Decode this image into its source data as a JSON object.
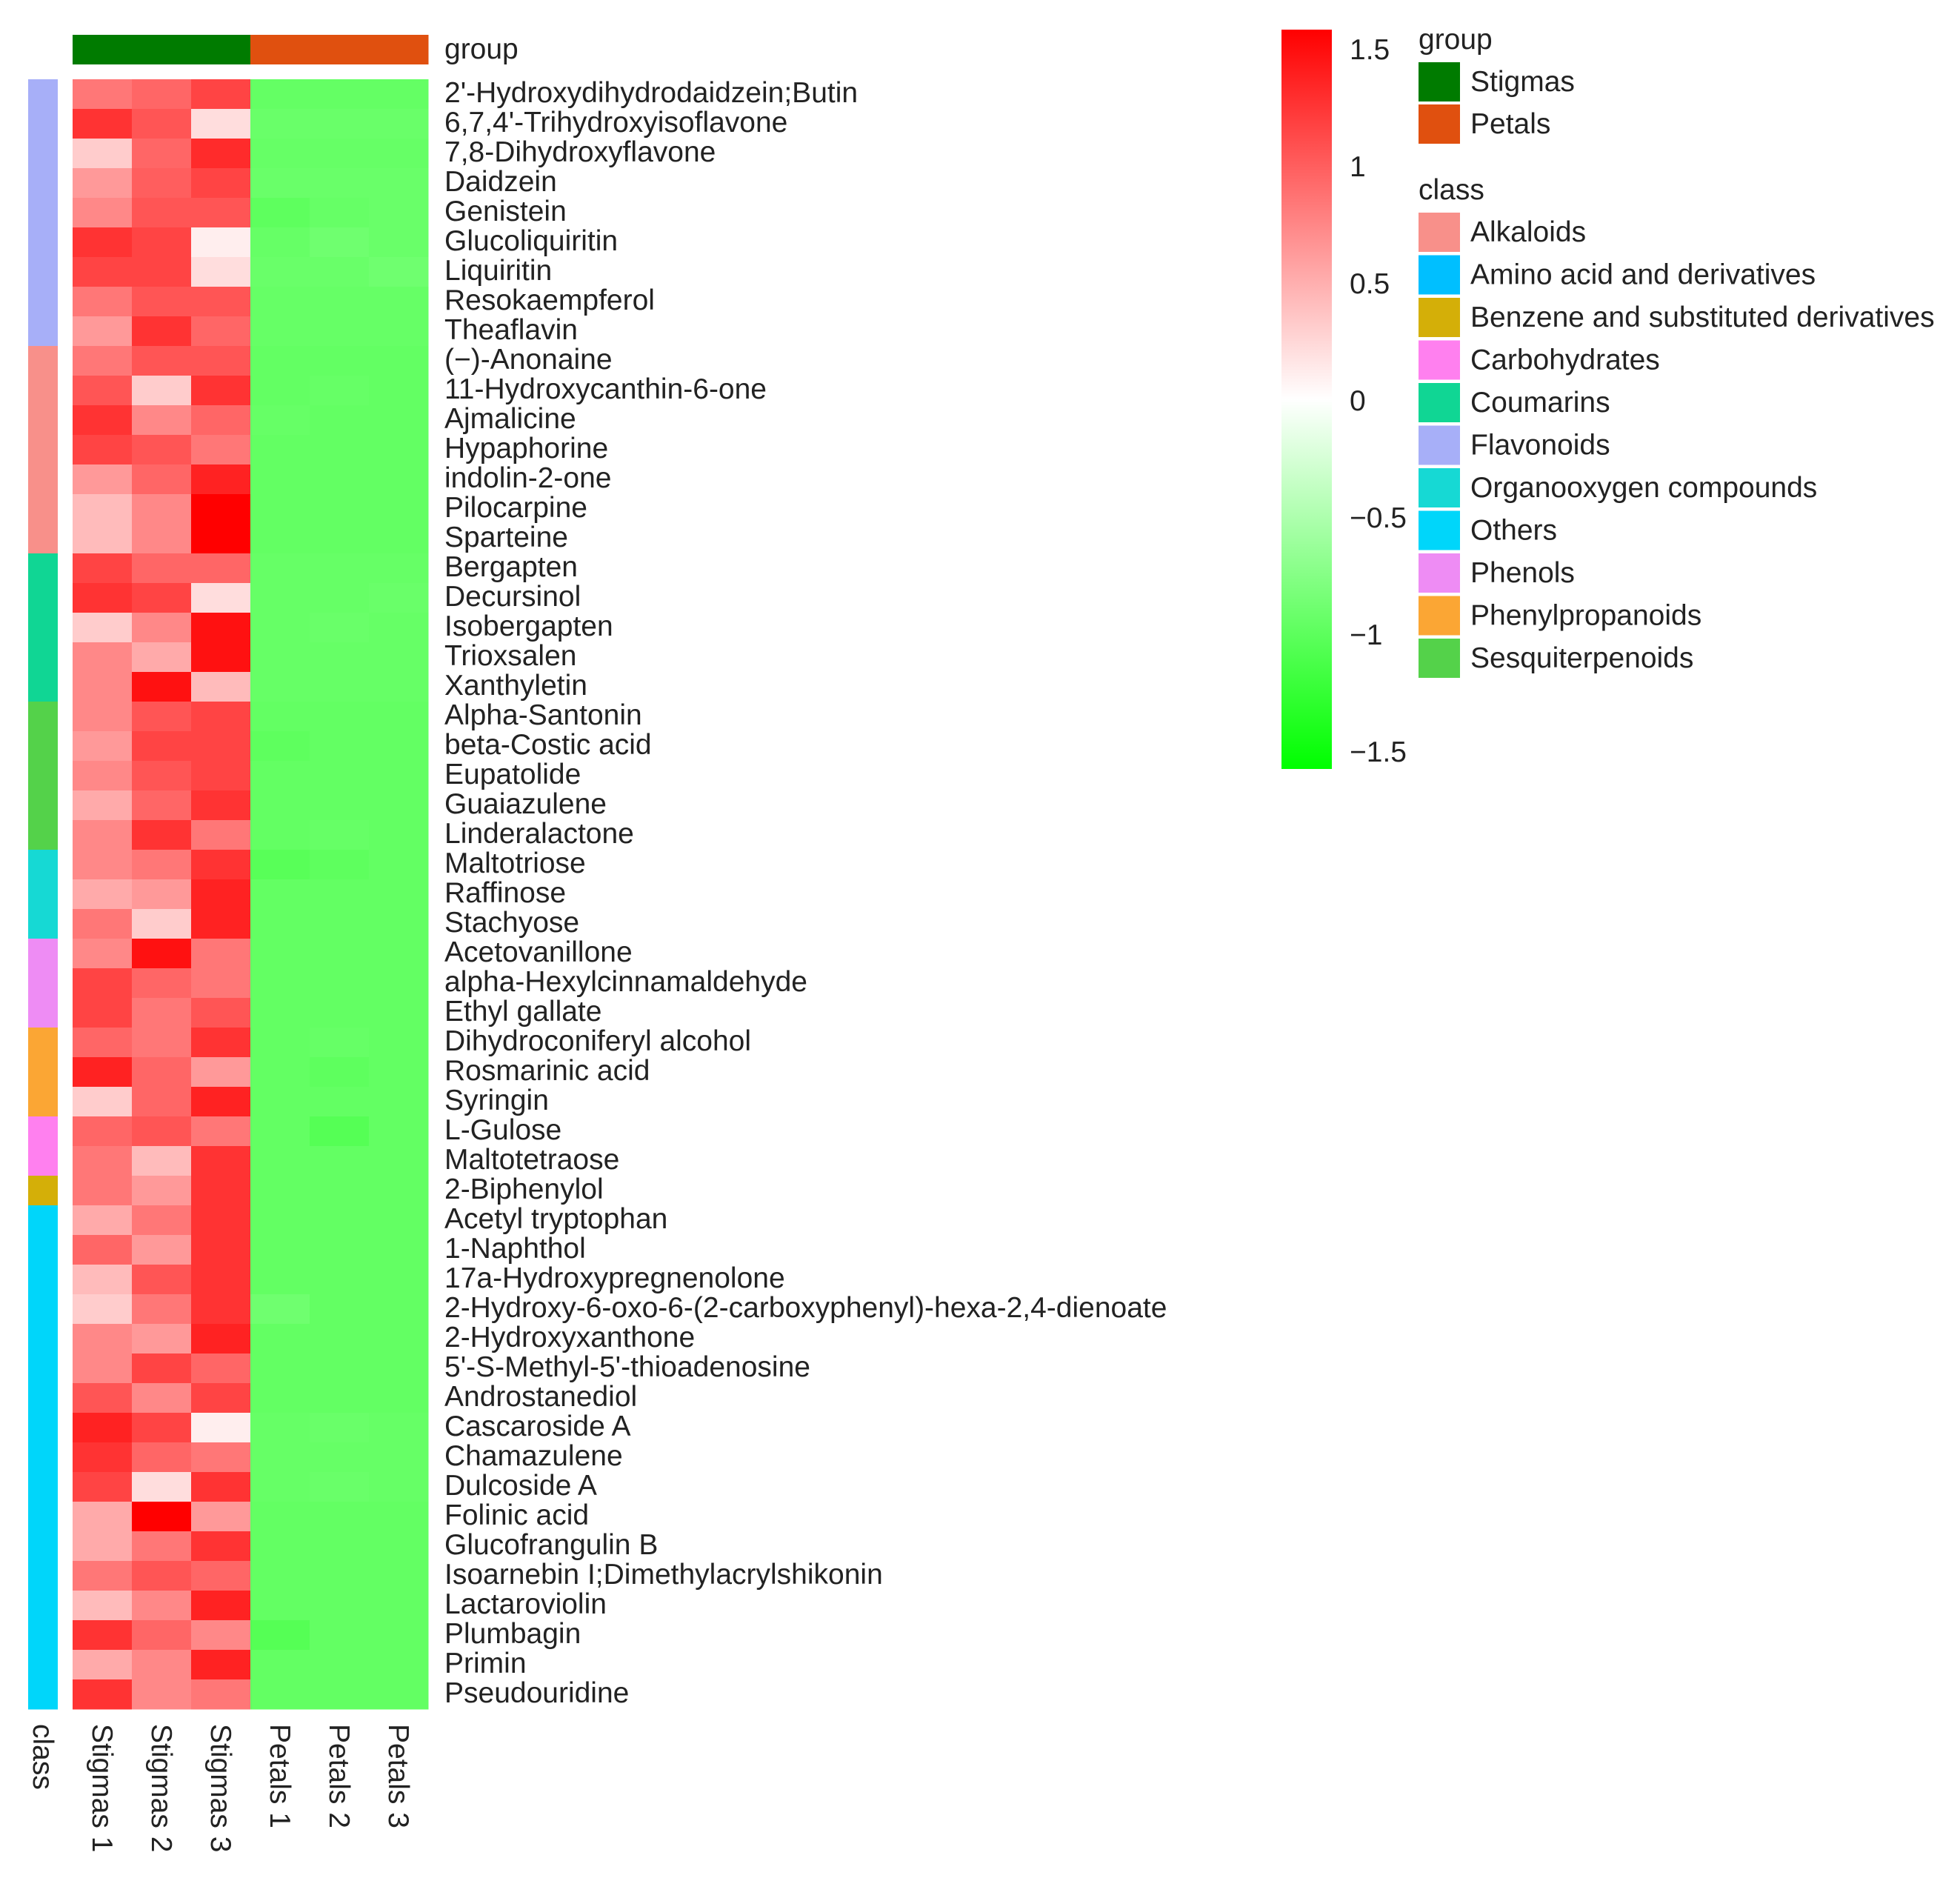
{
  "chart_data": {
    "type": "heatmap",
    "title": "",
    "columns": [
      "Stigmas 1",
      "Stigmas 2",
      "Stigmas 3",
      "Petals 1",
      "Petals 2",
      "Petals 3"
    ],
    "column_groups": [
      "Stigmas",
      "Stigmas",
      "Stigmas",
      "Petals",
      "Petals",
      "Petals"
    ],
    "group_annotation_label": "group",
    "class_annotation_label": "class",
    "rows": [
      "2'-Hydroxydihydrodaidzein;Butin",
      "6,7,4'-Trihydroxyisoflavone",
      "7,8-Dihydroxyflavone",
      "Daidzein",
      "Genistein",
      "Glucoliquiritin",
      "Liquiritin",
      "Resokaempferol",
      "Theaflavin",
      "(−)-Anonaine",
      "11-Hydroxycanthin-6-one",
      "Ajmalicine",
      "Hypaphorine",
      "indolin-2-one",
      "Pilocarpine",
      "Sparteine",
      "Bergapten",
      "Decursinol",
      "Isobergapten",
      "Trioxsalen",
      "Xanthyletin",
      "Alpha-Santonin",
      "beta-Costic acid",
      "Eupatolide",
      "Guaiazulene",
      "Linderalactone",
      "Maltotriose",
      "Raffinose",
      "Stachyose",
      "Acetovanillone",
      "alpha-Hexylcinnamaldehyde",
      "Ethyl gallate",
      "Dihydroconiferyl alcohol",
      "Rosmarinic acid",
      "Syringin",
      "L-Gulose",
      "Maltotetraose",
      "2-Biphenylol",
      "Acetyl tryptophan",
      "1-Naphthol",
      "17a-Hydroxypregnenolone",
      "2-Hydroxy-6-oxo-6-(2-carboxyphenyl)-hexa-2,4-dienoate",
      "2-Hydroxyxanthone",
      "5'-S-Methyl-5'-thioadenosine",
      "Androstanediol",
      "Cascaroside A",
      "Chamazulene",
      "Dulcoside A",
      "Folinic acid",
      "Glucofrangulin B",
      "Isoarnebin I;Dimethylacrylshikonin",
      "Lactaroviolin",
      "Plumbagin",
      "Primin",
      "Pseudouridine"
    ],
    "row_classes": [
      "Flavonoids",
      "Flavonoids",
      "Flavonoids",
      "Flavonoids",
      "Flavonoids",
      "Flavonoids",
      "Flavonoids",
      "Flavonoids",
      "Flavonoids",
      "Alkaloids",
      "Alkaloids",
      "Alkaloids",
      "Alkaloids",
      "Alkaloids",
      "Alkaloids",
      "Alkaloids",
      "Coumarins",
      "Coumarins",
      "Coumarins",
      "Coumarins",
      "Coumarins",
      "Sesquiterpenoids",
      "Sesquiterpenoids",
      "Sesquiterpenoids",
      "Sesquiterpenoids",
      "Sesquiterpenoids",
      "Organooxygen compounds",
      "Organooxygen compounds",
      "Organooxygen compounds",
      "Phenols",
      "Phenols",
      "Phenols",
      "Phenylpropanoids",
      "Phenylpropanoids",
      "Phenylpropanoids",
      "Carbohydrates",
      "Carbohydrates",
      "Benzene and substituted derivatives",
      "Others",
      "Others",
      "Others",
      "Others",
      "Others",
      "Others",
      "Others",
      "Others",
      "Others",
      "Others",
      "Others",
      "Others",
      "Others",
      "Others",
      "Others",
      "Others",
      "Others"
    ],
    "values": [
      [
        0.8,
        0.9,
        1.1,
        -0.91,
        -0.91,
        -0.91
      ],
      [
        1.2,
        1.0,
        0.2,
        -0.88,
        -0.88,
        -0.88
      ],
      [
        0.3,
        0.9,
        1.25,
        -0.9,
        -0.9,
        -0.9
      ],
      [
        0.6,
        0.95,
        1.1,
        -0.88,
        -0.88,
        -0.88
      ],
      [
        0.7,
        1.0,
        1.0,
        -0.95,
        -0.9,
        -0.88
      ],
      [
        1.2,
        1.1,
        0.1,
        -0.9,
        -0.85,
        -0.88
      ],
      [
        1.1,
        1.1,
        0.2,
        -0.88,
        -0.88,
        -0.85
      ],
      [
        0.8,
        1.0,
        1.0,
        -0.9,
        -0.9,
        -0.9
      ],
      [
        0.6,
        1.2,
        0.9,
        -0.9,
        -0.9,
        -0.9
      ],
      [
        0.8,
        1.0,
        1.0,
        -0.92,
        -0.92,
        -0.92
      ],
      [
        1.0,
        0.3,
        1.2,
        -0.92,
        -0.9,
        -0.92
      ],
      [
        1.2,
        0.7,
        0.9,
        -0.9,
        -0.92,
        -0.92
      ],
      [
        1.1,
        1.0,
        0.8,
        -0.92,
        -0.92,
        -0.92
      ],
      [
        0.6,
        0.9,
        1.3,
        -0.92,
        -0.92,
        -0.92
      ],
      [
        0.4,
        0.7,
        1.5,
        -0.92,
        -0.92,
        -0.92
      ],
      [
        0.4,
        0.7,
        1.5,
        -0.92,
        -0.92,
        -0.92
      ],
      [
        1.1,
        0.9,
        0.9,
        -0.9,
        -0.9,
        -0.9
      ],
      [
        1.2,
        1.1,
        0.2,
        -0.9,
        -0.9,
        -0.88
      ],
      [
        0.3,
        0.7,
        1.4,
        -0.9,
        -0.88,
        -0.9
      ],
      [
        0.7,
        0.5,
        1.4,
        -0.9,
        -0.9,
        -0.9
      ],
      [
        0.7,
        1.4,
        0.4,
        -0.9,
        -0.9,
        -0.9
      ],
      [
        0.7,
        1.0,
        1.1,
        -0.92,
        -0.92,
        -0.92
      ],
      [
        0.6,
        1.1,
        1.1,
        -0.95,
        -0.92,
        -0.92
      ],
      [
        0.7,
        1.0,
        1.1,
        -0.92,
        -0.92,
        -0.92
      ],
      [
        0.5,
        0.9,
        1.2,
        -0.92,
        -0.92,
        -0.92
      ],
      [
        0.7,
        1.2,
        0.8,
        -0.92,
        -0.9,
        -0.92
      ],
      [
        0.7,
        0.8,
        1.2,
        -0.98,
        -0.95,
        -0.92
      ],
      [
        0.5,
        0.6,
        1.3,
        -0.92,
        -0.92,
        -0.92
      ],
      [
        0.8,
        0.3,
        1.3,
        -0.92,
        -0.92,
        -0.92
      ],
      [
        0.7,
        1.4,
        0.8,
        -0.92,
        -0.92,
        -0.92
      ],
      [
        1.1,
        0.9,
        0.8,
        -0.92,
        -0.92,
        -0.92
      ],
      [
        1.1,
        0.8,
        1.0,
        -0.92,
        -0.92,
        -0.92
      ],
      [
        0.9,
        0.8,
        1.2,
        -0.92,
        -0.9,
        -0.92
      ],
      [
        1.3,
        0.9,
        0.6,
        -0.92,
        -0.95,
        -0.92
      ],
      [
        0.3,
        0.9,
        1.3,
        -0.92,
        -0.92,
        -0.92
      ],
      [
        0.9,
        1.0,
        0.8,
        -0.92,
        -1.0,
        -0.92
      ],
      [
        0.8,
        0.4,
        1.2,
        -0.92,
        -0.92,
        -0.92
      ],
      [
        0.8,
        0.6,
        1.2,
        -0.92,
        -0.92,
        -0.92
      ],
      [
        0.5,
        0.8,
        1.2,
        -0.92,
        -0.92,
        -0.92
      ],
      [
        0.9,
        0.6,
        1.2,
        -0.92,
        -0.92,
        -0.92
      ],
      [
        0.4,
        1.0,
        1.2,
        -0.92,
        -0.92,
        -0.92
      ],
      [
        0.3,
        0.8,
        1.2,
        -0.85,
        -0.92,
        -0.92
      ],
      [
        0.7,
        0.6,
        1.3,
        -0.92,
        -0.92,
        -0.92
      ],
      [
        0.7,
        1.1,
        0.9,
        -0.92,
        -0.92,
        -0.92
      ],
      [
        1.0,
        0.7,
        1.1,
        -0.92,
        -0.92,
        -0.92
      ],
      [
        1.3,
        1.1,
        0.1,
        -0.9,
        -0.88,
        -0.9
      ],
      [
        1.2,
        0.9,
        0.8,
        -0.9,
        -0.9,
        -0.9
      ],
      [
        1.1,
        0.2,
        1.2,
        -0.9,
        -0.88,
        -0.9
      ],
      [
        0.5,
        1.5,
        0.6,
        -0.92,
        -0.92,
        -0.92
      ],
      [
        0.5,
        0.8,
        1.2,
        -0.92,
        -0.92,
        -0.92
      ],
      [
        0.8,
        1.0,
        0.9,
        -0.92,
        -0.92,
        -0.92
      ],
      [
        0.4,
        0.7,
        1.3,
        -0.92,
        -0.92,
        -0.92
      ],
      [
        1.2,
        0.9,
        0.7,
        -1.0,
        -0.92,
        -0.92
      ],
      [
        0.5,
        0.7,
        1.3,
        -0.92,
        -0.92,
        -0.92
      ],
      [
        1.2,
        0.7,
        0.8,
        -0.92,
        -0.92,
        -0.92
      ]
    ],
    "color_scale": {
      "min": -1.5,
      "max": 1.5,
      "low_color": "#00ff00",
      "mid_color": "#ffffff",
      "high_color": "#ff0000",
      "ticks": [
        1.5,
        1,
        0.5,
        0,
        -0.5,
        -1,
        -1.5
      ],
      "tick_labels": [
        "1.5",
        "1",
        "0.5",
        "0",
        "−0.5",
        "−1",
        "−1.5"
      ]
    },
    "group_legend": {
      "title": "group",
      "items": [
        {
          "label": "Stigmas",
          "color": "#007b00"
        },
        {
          "label": "Petals",
          "color": "#e0500f"
        }
      ]
    },
    "class_legend": {
      "title": "class",
      "items": [
        {
          "label": "Alkaloids",
          "color": "#f8908a"
        },
        {
          "label": "Amino acid and derivatives",
          "color": "#00bfff"
        },
        {
          "label": "Benzene and substituted derivatives",
          "color": "#d4af08"
        },
        {
          "label": "Carbohydrates",
          "color": "#ff80ef"
        },
        {
          "label": "Coumarins",
          "color": "#10d694"
        },
        {
          "label": "Flavonoids",
          "color": "#a7aff8"
        },
        {
          "label": "Organooxygen compounds",
          "color": "#16d9d4"
        },
        {
          "label": "Others",
          "color": "#00d6fa"
        },
        {
          "label": "Phenols",
          "color": "#ee8cf4"
        },
        {
          "label": "Phenylpropanoids",
          "color": "#fba634"
        },
        {
          "label": "Sesquiterpenoids",
          "color": "#54d24a"
        }
      ]
    }
  }
}
